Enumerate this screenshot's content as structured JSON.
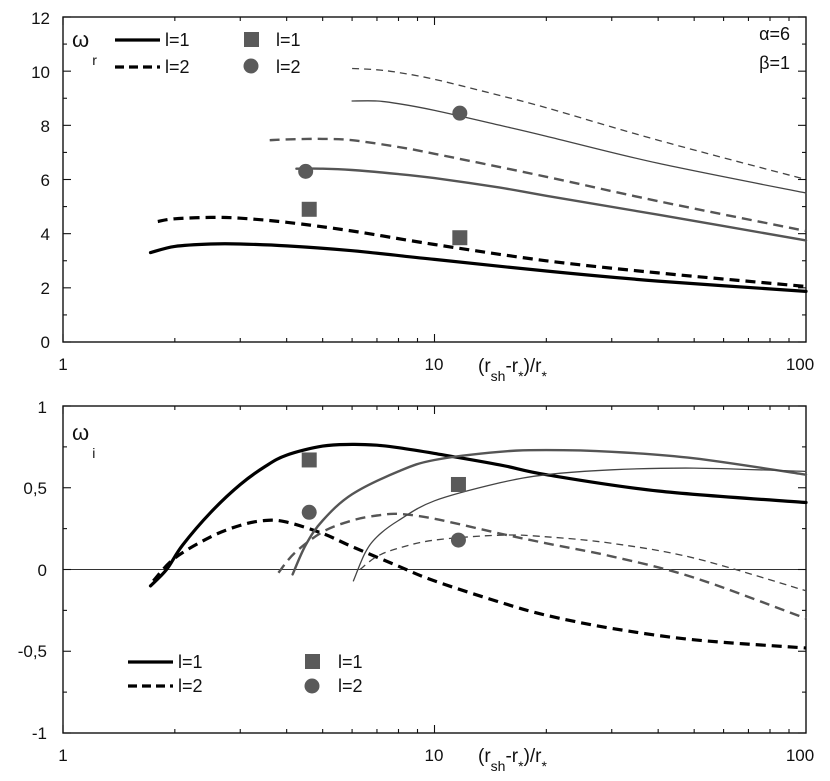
{
  "chart_data": [
    {
      "type": "line",
      "panel": "top",
      "xscale": "log",
      "xlim": [
        1,
        100
      ],
      "ylim": [
        0,
        12
      ],
      "xticks": [
        "1",
        "10",
        "100"
      ],
      "yticks": [
        "0",
        "2",
        "4",
        "6",
        "8",
        "10",
        "12"
      ],
      "ylabel_main": "ω",
      "ylabel_sub": "r",
      "xlabel": {
        "open": "(r",
        "sub_sh": "sh",
        "mid": "-r",
        "sub_star1": "*",
        "close": ")/r",
        "sub_star2": "*"
      },
      "params": [
        "α=6",
        "β=1"
      ],
      "legend_lines": [
        {
          "label": "l=1",
          "style": "solid"
        },
        {
          "label": "l=2",
          "style": "dashed"
        }
      ],
      "legend_markers": [
        {
          "label": "l=1",
          "marker": "square"
        },
        {
          "label": "l=2",
          "marker": "circle"
        }
      ],
      "series": [
        {
          "name": "l=1 mode 0",
          "style": "solid",
          "weight": "bold",
          "color": "#000000",
          "x": [
            1.72,
            2,
            2.5,
            3,
            4,
            6,
            10,
            20,
            40,
            100
          ],
          "y": [
            3.3,
            3.53,
            3.62,
            3.62,
            3.55,
            3.37,
            3.05,
            2.62,
            2.25,
            1.87
          ]
        },
        {
          "name": "l=2 mode 0",
          "style": "dashed",
          "weight": "bold",
          "color": "#000000",
          "x": [
            1.8,
            2,
            2.5,
            3,
            4,
            6,
            10,
            20,
            40,
            100
          ],
          "y": [
            4.45,
            4.55,
            4.6,
            4.57,
            4.42,
            4.1,
            3.6,
            3.0,
            2.55,
            2.05
          ]
        },
        {
          "name": "l=1 mode 1",
          "style": "solid",
          "weight": "medium",
          "color": "#555555",
          "x": [
            4.25,
            5,
            6,
            8,
            10,
            15,
            20,
            40,
            100
          ],
          "y": [
            6.4,
            6.4,
            6.35,
            6.2,
            6.05,
            5.7,
            5.4,
            4.7,
            3.75
          ]
        },
        {
          "name": "l=2 mode 1",
          "style": "dashed",
          "weight": "medium",
          "color": "#555555",
          "x": [
            3.6,
            4,
            5,
            6,
            8,
            10,
            20,
            40,
            100
          ],
          "y": [
            7.45,
            7.48,
            7.5,
            7.45,
            7.2,
            6.95,
            6.1,
            5.2,
            4.1
          ]
        },
        {
          "name": "l=1 mode 2",
          "style": "solid",
          "weight": "thin",
          "color": "#444444",
          "x": [
            6,
            7,
            8,
            10,
            15,
            20,
            40,
            100
          ],
          "y": [
            8.9,
            8.9,
            8.8,
            8.55,
            8.0,
            7.6,
            6.6,
            5.5
          ]
        },
        {
          "name": "l=2 mode 2",
          "style": "dashed",
          "weight": "thin",
          "color": "#444444",
          "x": [
            6,
            7,
            8,
            10,
            15,
            20,
            40,
            100
          ],
          "y": [
            10.1,
            10.05,
            9.95,
            9.7,
            9.1,
            8.65,
            7.45,
            6.0
          ]
        }
      ],
      "markers": [
        {
          "label": "l=1",
          "marker": "square",
          "x": 4.6,
          "y": 4.9
        },
        {
          "label": "l=1",
          "marker": "square",
          "x": 11.7,
          "y": 3.85
        },
        {
          "label": "l=2",
          "marker": "circle",
          "x": 4.5,
          "y": 6.3
        },
        {
          "label": "l=2",
          "marker": "circle",
          "x": 11.7,
          "y": 8.45
        }
      ]
    },
    {
      "type": "line",
      "panel": "bottom",
      "xscale": "log",
      "xlim": [
        1,
        100
      ],
      "ylim": [
        -1,
        1
      ],
      "xticks": [
        "1",
        "10",
        "100"
      ],
      "yticks": [
        "-1",
        "-0,5",
        "0",
        "0,5",
        "1"
      ],
      "ylabel_main": "ω",
      "ylabel_sub": "i",
      "xlabel": {
        "open": "(r",
        "sub_sh": "sh",
        "mid": "-r",
        "sub_star1": "*",
        "close": ")/r",
        "sub_star2": "*"
      },
      "legend_lines": [
        {
          "label": "l=1",
          "style": "solid"
        },
        {
          "label": "l=2",
          "style": "dashed"
        }
      ],
      "legend_markers": [
        {
          "label": "l=1",
          "marker": "square"
        },
        {
          "label": "l=2",
          "marker": "circle"
        }
      ],
      "series": [
        {
          "name": "l=1 mode 0",
          "style": "solid",
          "weight": "bold",
          "color": "#000000",
          "x": [
            1.72,
            1.9,
            2.1,
            2.5,
            3,
            3.5,
            4,
            5,
            6,
            7,
            8,
            10,
            15,
            20,
            40,
            100
          ],
          "y": [
            -0.1,
            0.0,
            0.15,
            0.35,
            0.52,
            0.63,
            0.7,
            0.755,
            0.765,
            0.76,
            0.745,
            0.71,
            0.64,
            0.58,
            0.48,
            0.41
          ]
        },
        {
          "name": "l=2 mode 0",
          "style": "dashed",
          "weight": "bold",
          "color": "#000000",
          "x": [
            1.75,
            2,
            2.5,
            3,
            3.5,
            4,
            5,
            6,
            8,
            10,
            15,
            20,
            30,
            50,
            100
          ],
          "y": [
            -0.07,
            0.07,
            0.2,
            0.27,
            0.3,
            0.29,
            0.22,
            0.14,
            0.02,
            -0.07,
            -0.2,
            -0.28,
            -0.36,
            -0.43,
            -0.48
          ]
        },
        {
          "name": "l=1 mode 1",
          "style": "solid",
          "weight": "medium",
          "color": "#555555",
          "x": [
            4.15,
            4.5,
            5,
            6,
            8,
            10,
            15,
            20,
            30,
            50,
            100
          ],
          "y": [
            -0.03,
            0.15,
            0.3,
            0.46,
            0.6,
            0.67,
            0.72,
            0.73,
            0.72,
            0.68,
            0.58
          ]
        },
        {
          "name": "l=2 mode 1",
          "style": "dashed",
          "weight": "medium",
          "color": "#555555",
          "x": [
            3.8,
            4.2,
            5,
            6,
            7,
            8,
            10,
            15,
            20,
            30,
            50,
            100
          ],
          "y": [
            -0.02,
            0.1,
            0.23,
            0.3,
            0.33,
            0.34,
            0.31,
            0.22,
            0.16,
            0.08,
            -0.05,
            -0.3
          ]
        },
        {
          "name": "l=1 mode 2",
          "style": "solid",
          "weight": "thin",
          "color": "#444444",
          "x": [
            6.05,
            6.5,
            7,
            8,
            10,
            15,
            20,
            30,
            50,
            100
          ],
          "y": [
            -0.07,
            0.1,
            0.2,
            0.3,
            0.42,
            0.53,
            0.58,
            0.61,
            0.62,
            0.6
          ]
        },
        {
          "name": "l=2 mode 2",
          "style": "dashed",
          "weight": "thin",
          "color": "#444444",
          "x": [
            6.3,
            7,
            8,
            10,
            15,
            20,
            30,
            50,
            100
          ],
          "y": [
            0.0,
            0.08,
            0.13,
            0.18,
            0.21,
            0.2,
            0.16,
            0.07,
            -0.13
          ]
        }
      ],
      "markers": [
        {
          "label": "l=1",
          "marker": "square",
          "x": 4.6,
          "y": 0.67
        },
        {
          "label": "l=1",
          "marker": "square",
          "x": 11.6,
          "y": 0.52
        },
        {
          "label": "l=2",
          "marker": "circle",
          "x": 4.6,
          "y": 0.35
        },
        {
          "label": "l=2",
          "marker": "circle",
          "x": 11.6,
          "y": 0.18
        }
      ]
    }
  ]
}
